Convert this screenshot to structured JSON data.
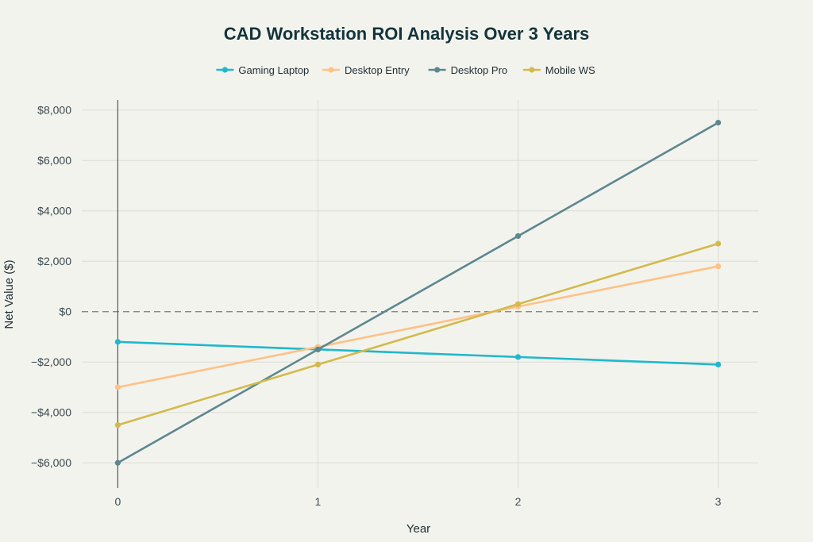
{
  "chart_data": {
    "type": "line",
    "title": "CAD Workstation ROI Analysis Over 3 Years",
    "xlabel": "Year",
    "ylabel": "Net Value ($)",
    "x": [
      0,
      1,
      2,
      3
    ],
    "xlim": [
      -0.18,
      3.2
    ],
    "ylim": [
      -7000,
      8400
    ],
    "xticks": [
      "0",
      "1",
      "2",
      "3"
    ],
    "yticks": [
      {
        "value": 8000,
        "label": "$8,000"
      },
      {
        "value": 6000,
        "label": "$6,000"
      },
      {
        "value": 4000,
        "label": "$4,000"
      },
      {
        "value": 2000,
        "label": "$2,000"
      },
      {
        "value": 0,
        "label": "$0"
      },
      {
        "value": -2000,
        "label": "−$2,000"
      },
      {
        "value": -4000,
        "label": "−$4,000"
      },
      {
        "value": -6000,
        "label": "−$6,000"
      }
    ],
    "grid": true,
    "legend_position": "top",
    "zero_line": "dashed",
    "series": [
      {
        "name": "Gaming Laptop",
        "color": "#1fb8cd",
        "values": [
          -1200,
          -1500,
          -1800,
          -2100
        ]
      },
      {
        "name": "Desktop Entry",
        "color": "#ffc185",
        "values": [
          -3000,
          -1400,
          200,
          1800
        ]
      },
      {
        "name": "Desktop Pro",
        "color": "#5d878f",
        "values": [
          -6000,
          -1500,
          3000,
          7500
        ]
      },
      {
        "name": "Mobile WS",
        "color": "#d2ba4c",
        "values": [
          -4500,
          -2100,
          300,
          2700
        ]
      }
    ]
  }
}
